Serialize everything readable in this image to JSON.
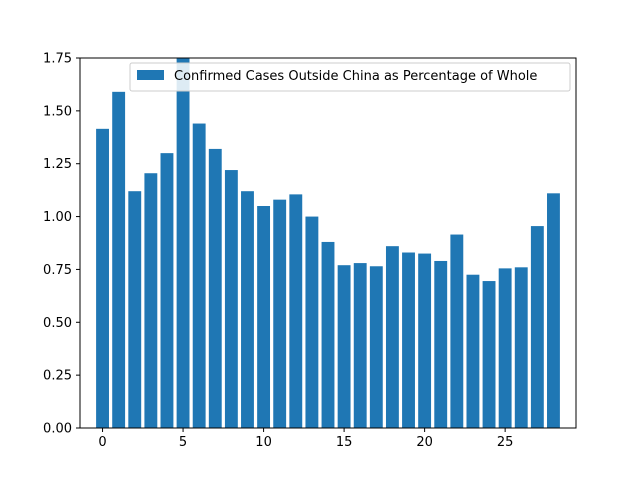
{
  "chart_data": {
    "type": "bar",
    "title": "",
    "xlabel": "",
    "ylabel": "",
    "x": [
      0,
      1,
      2,
      3,
      4,
      5,
      6,
      7,
      8,
      9,
      10,
      11,
      12,
      13,
      14,
      15,
      16,
      17,
      18,
      19,
      20,
      21,
      22,
      23,
      24,
      25,
      26,
      27,
      28
    ],
    "series": [
      {
        "name": "Confirmed Cases Outside China as Percentage of Whole",
        "color": "#1f77b4",
        "values": [
          1.415,
          1.59,
          1.12,
          1.205,
          1.3,
          1.75,
          1.44,
          1.32,
          1.22,
          1.12,
          1.05,
          1.08,
          1.105,
          1.0,
          0.88,
          0.77,
          0.78,
          0.765,
          0.86,
          0.83,
          0.825,
          0.79,
          0.915,
          0.725,
          0.695,
          0.755,
          0.76,
          0.955,
          1.11
        ]
      }
    ],
    "xlim": [
      -1.4,
      29.4
    ],
    "ylim": [
      0,
      1.75
    ],
    "xticks": [
      "0",
      "5",
      "10",
      "15",
      "20",
      "25"
    ],
    "yticks": [
      "0.00",
      "0.25",
      "0.50",
      "0.75",
      "1.00",
      "1.25",
      "1.50",
      "1.75"
    ],
    "grid": false,
    "legend_position": "top-right"
  }
}
